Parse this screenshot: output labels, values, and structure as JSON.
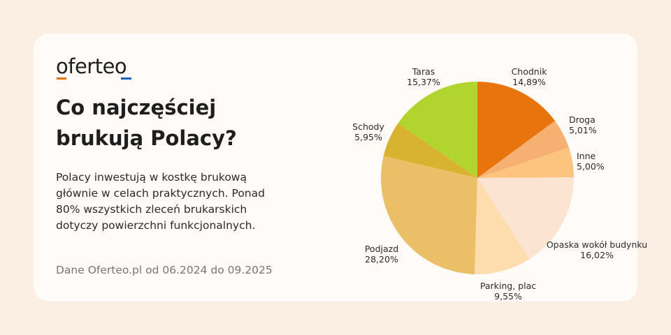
{
  "brand": {
    "logo": "oferteo",
    "accent_orange": "#e8740e",
    "accent_blue": "#1f5fbf"
  },
  "title": "Co najczęściej brukują Polacy?",
  "description": "Polacy inwestują w kostkę brukową głównie w celach praktycznych. Ponad 80% wszystkich zleceń brukarskich dotyczy powierzchni funkcjonalnych.",
  "source": "Dane Oferteo.pl od 06.2024 do 09.2025",
  "chart_data": {
    "type": "pie",
    "start": "top, clockwise",
    "slices": [
      {
        "name": "Chodnik",
        "value": 14.89,
        "label": "14,89%",
        "color": "#e8740e"
      },
      {
        "name": "Droga",
        "value": 5.01,
        "label": "5,01%",
        "color": "#f5b072"
      },
      {
        "name": "Inne",
        "value": 5.0,
        "label": "5,00%",
        "color": "#fdc47f"
      },
      {
        "name": "Opaska wokół budynku",
        "value": 16.02,
        "label": "16,02%",
        "color": "#fbe4d2"
      },
      {
        "name": "Parking, plac",
        "value": 9.55,
        "label": "9,55%",
        "color": "#fddcae"
      },
      {
        "name": "Podjazd",
        "value": 28.2,
        "label": "28,20%",
        "color": "#eabf68"
      },
      {
        "name": "Schody",
        "value": 5.95,
        "label": "5,95%",
        "color": "#d8b330"
      },
      {
        "name": "Taras",
        "value": 15.37,
        "label": "15,37%",
        "color": "#b1d42e"
      }
    ]
  }
}
